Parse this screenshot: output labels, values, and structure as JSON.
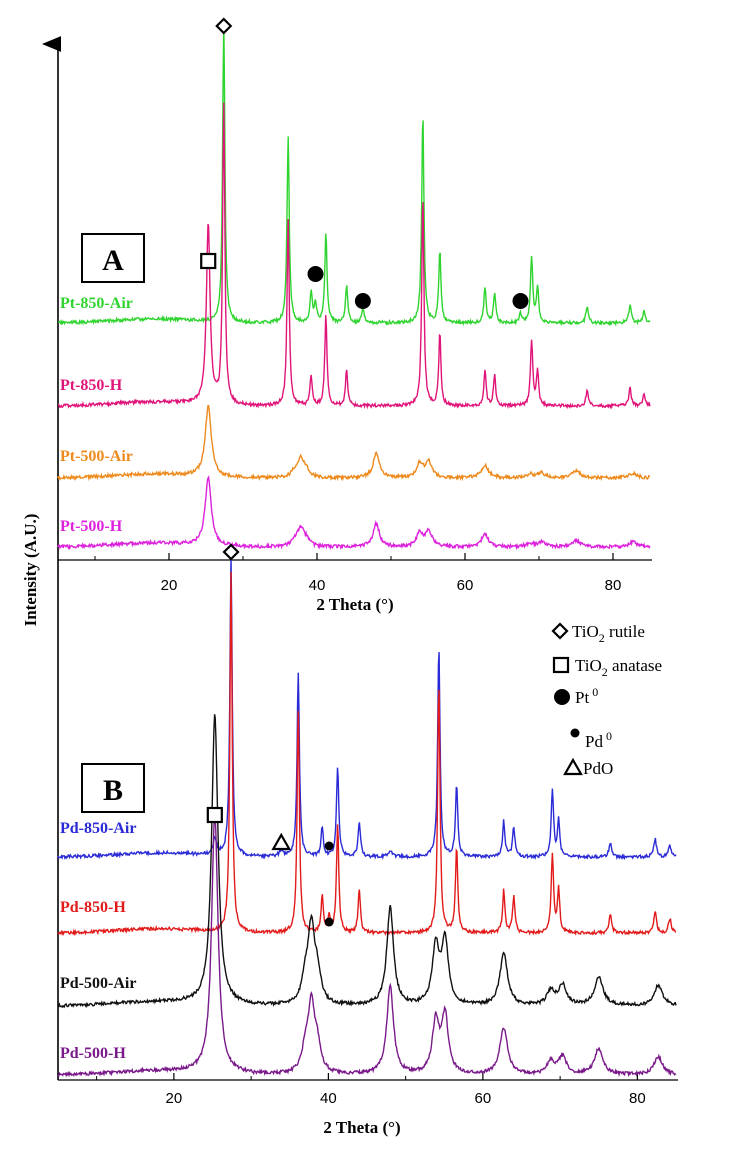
{
  "figure": {
    "ylabel": "Intensity (A.U.)",
    "legend": [
      {
        "marker": "diamond-open",
        "label": "TiO",
        "sub": "2",
        "rest": " rutile"
      },
      {
        "marker": "square-open",
        "label": "TiO",
        "sub": "2",
        "rest": " anatase"
      },
      {
        "marker": "circle-filled-large",
        "label": "Pt",
        "sup": "0",
        "rest": ""
      },
      {
        "marker": "circle-filled-small",
        "label": "Pd",
        "sup": "0",
        "rest": ""
      },
      {
        "marker": "triangle-open",
        "label": "PdO",
        "rest": ""
      }
    ]
  },
  "chart_data": [
    {
      "panel": "A",
      "type": "line",
      "xlabel": "2 Theta (°)",
      "ylabel": "Intensity (A.U.)",
      "xlim": [
        5,
        85
      ],
      "xticks": [
        20,
        40,
        60,
        80
      ],
      "series": [
        {
          "name": "Pt-850-Air",
          "color": "#2fd42f",
          "phase": "rutile"
        },
        {
          "name": "Pt-850-H",
          "color": "#e0157a",
          "phase": "rutile"
        },
        {
          "name": "Pt-500-Air",
          "color": "#ee8a1c",
          "phase": "anatase"
        },
        {
          "name": "Pt-500-H",
          "color": "#dd22dd",
          "phase": "anatase"
        }
      ],
      "markers": [
        {
          "symbol": "diamond-open",
          "x": 27.4
        },
        {
          "symbol": "square-open",
          "x": 25.3
        },
        {
          "symbol": "circle-filled-large",
          "x": 39.8
        },
        {
          "symbol": "circle-filled-large",
          "x": 46.2
        },
        {
          "symbol": "circle-filled-large",
          "x": 67.5
        }
      ]
    },
    {
      "panel": "B",
      "type": "line",
      "xlabel": "2 Theta (°)",
      "ylabel": "Intensity (A.U.)",
      "xlim": [
        5,
        85
      ],
      "xticks": [
        20,
        40,
        60,
        80
      ],
      "series": [
        {
          "name": "Pd-850-Air",
          "color": "#2a2ad6",
          "phase": "rutile"
        },
        {
          "name": "Pd-850-H",
          "color": "#e21a1a",
          "phase": "rutile"
        },
        {
          "name": "Pd-500-Air",
          "color": "#111111",
          "phase": "anatase"
        },
        {
          "name": "Pd-500-H",
          "color": "#7a1a8a",
          "phase": "anatase"
        }
      ],
      "markers": [
        {
          "symbol": "diamond-open",
          "x": 27.4
        },
        {
          "symbol": "square-open",
          "x": 25.3
        },
        {
          "symbol": "triangle-open",
          "x": 33.9
        },
        {
          "symbol": "circle-filled-small",
          "x": 40.1
        },
        {
          "symbol": "circle-filled-small",
          "x": 40.1
        }
      ]
    }
  ],
  "phases": {
    "rutile": [
      {
        "x": 27.4,
        "h": 1.0,
        "w": 0.18
      },
      {
        "x": 36.1,
        "h": 0.62,
        "w": 0.18
      },
      {
        "x": 39.2,
        "h": 0.1,
        "w": 0.18
      },
      {
        "x": 41.2,
        "h": 0.3,
        "w": 0.18
      },
      {
        "x": 44.0,
        "h": 0.12,
        "w": 0.18
      },
      {
        "x": 54.3,
        "h": 0.7,
        "w": 0.18
      },
      {
        "x": 56.6,
        "h": 0.24,
        "w": 0.18
      },
      {
        "x": 62.7,
        "h": 0.12,
        "w": 0.18
      },
      {
        "x": 64.0,
        "h": 0.1,
        "w": 0.18
      },
      {
        "x": 69.0,
        "h": 0.22,
        "w": 0.18
      },
      {
        "x": 69.8,
        "h": 0.12,
        "w": 0.18
      },
      {
        "x": 76.5,
        "h": 0.05,
        "w": 0.2
      },
      {
        "x": 82.3,
        "h": 0.06,
        "w": 0.2
      },
      {
        "x": 84.2,
        "h": 0.04,
        "w": 0.2
      }
    ],
    "anatase": [
      {
        "x": 25.3,
        "h": 1.0,
        "w": 0.38
      },
      {
        "x": 37.0,
        "h": 0.08,
        "w": 0.4
      },
      {
        "x": 37.8,
        "h": 0.26,
        "w": 0.4
      },
      {
        "x": 38.6,
        "h": 0.09,
        "w": 0.4
      },
      {
        "x": 48.0,
        "h": 0.34,
        "w": 0.4
      },
      {
        "x": 53.9,
        "h": 0.2,
        "w": 0.4
      },
      {
        "x": 55.1,
        "h": 0.22,
        "w": 0.4
      },
      {
        "x": 62.7,
        "h": 0.18,
        "w": 0.45
      },
      {
        "x": 68.8,
        "h": 0.05,
        "w": 0.45
      },
      {
        "x": 70.3,
        "h": 0.07,
        "w": 0.45
      },
      {
        "x": 75.0,
        "h": 0.1,
        "w": 0.5
      },
      {
        "x": 82.7,
        "h": 0.07,
        "w": 0.5
      }
    ]
  }
}
